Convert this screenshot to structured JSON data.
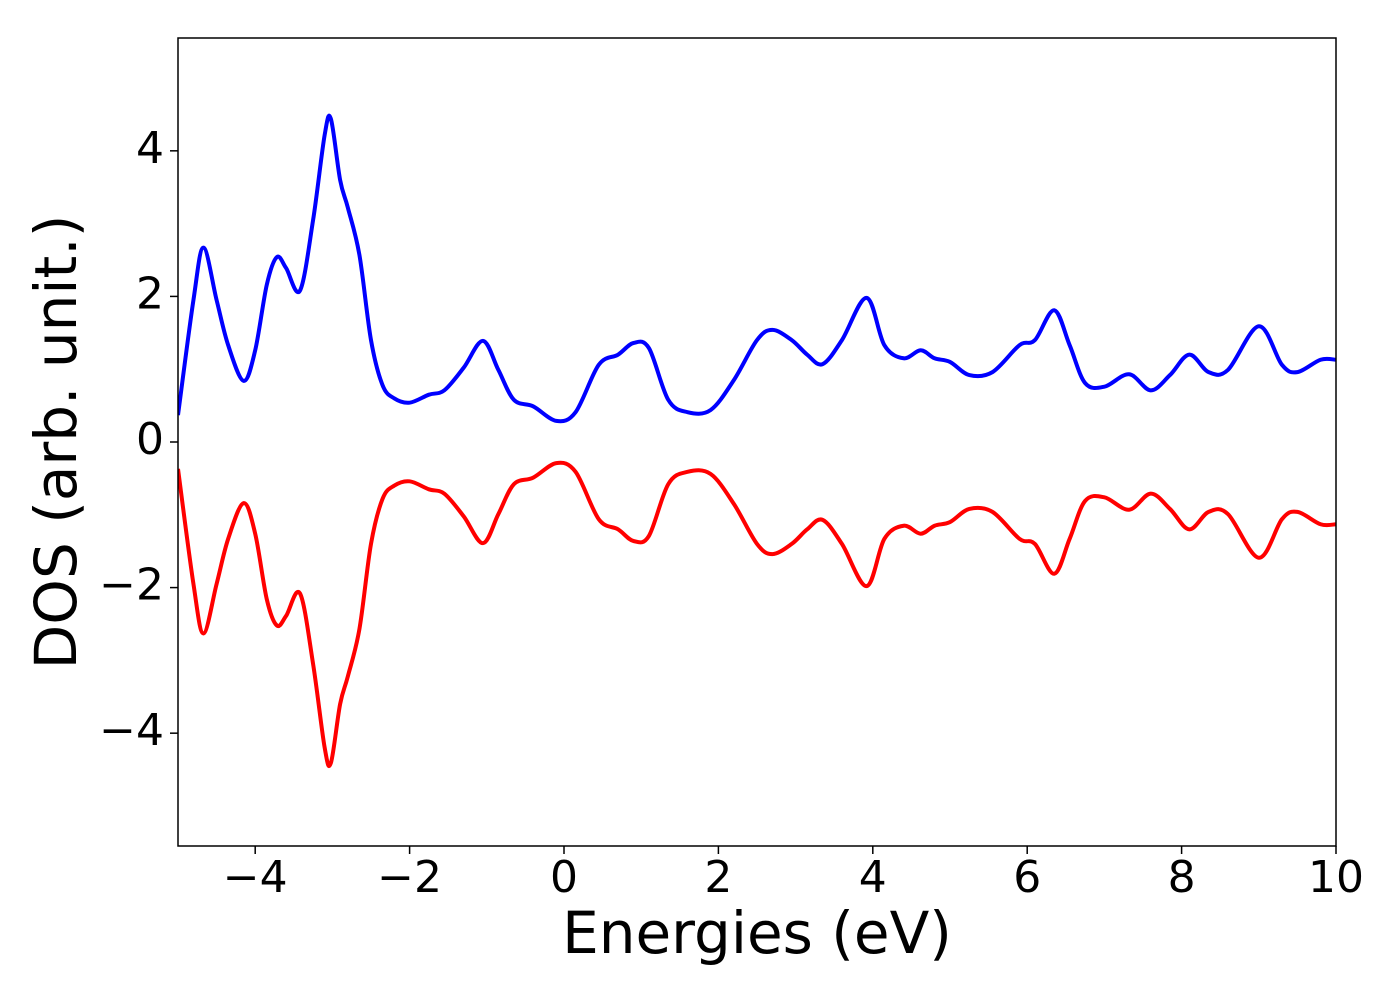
{
  "chart_data": {
    "type": "line",
    "xlabel": "Energies (eV)",
    "ylabel": "DOS (arb. unit.)",
    "x": [
      -5.0,
      -4.8,
      -4.67,
      -4.5,
      -4.35,
      -4.15,
      -4.0,
      -3.85,
      -3.72,
      -3.6,
      -3.42,
      -3.25,
      -3.1,
      -3.02,
      -2.9,
      -2.8,
      -2.65,
      -2.5,
      -2.35,
      -2.2,
      -2.0,
      -1.75,
      -1.55,
      -1.3,
      -1.05,
      -0.85,
      -0.65,
      -0.4,
      -0.1,
      0.15,
      0.45,
      0.7,
      0.9,
      1.1,
      1.35,
      1.6,
      1.9,
      2.2,
      2.5,
      2.7,
      2.95,
      3.15,
      3.35,
      3.6,
      3.92,
      4.15,
      4.4,
      4.62,
      4.8,
      5.0,
      5.25,
      5.55,
      5.9,
      6.1,
      6.35,
      6.55,
      6.75,
      7.0,
      7.32,
      7.6,
      7.85,
      8.1,
      8.35,
      8.6,
      9.0,
      9.3,
      9.5,
      9.8,
      10.0
    ],
    "series": [
      {
        "color": "#0000ff",
        "values": [
          0.37,
          1.95,
          2.67,
          1.95,
          1.33,
          0.84,
          1.26,
          2.16,
          2.54,
          2.39,
          2.08,
          3.05,
          4.22,
          4.44,
          3.6,
          3.22,
          2.57,
          1.4,
          0.78,
          0.6,
          0.54,
          0.65,
          0.71,
          1.02,
          1.39,
          0.99,
          0.58,
          0.49,
          0.29,
          0.41,
          1.06,
          1.2,
          1.36,
          1.29,
          0.58,
          0.41,
          0.44,
          0.85,
          1.4,
          1.54,
          1.4,
          1.2,
          1.07,
          1.4,
          1.98,
          1.33,
          1.15,
          1.26,
          1.15,
          1.1,
          0.92,
          0.96,
          1.33,
          1.4,
          1.81,
          1.33,
          0.81,
          0.76,
          0.93,
          0.71,
          0.92,
          1.2,
          0.96,
          0.99,
          1.59,
          1.06,
          0.96,
          1.13,
          1.13
        ]
      },
      {
        "color": "#ff0000",
        "values": [
          -0.37,
          -1.95,
          -2.63,
          -1.95,
          -1.33,
          -0.84,
          -1.26,
          -2.16,
          -2.52,
          -2.39,
          -2.08,
          -3.05,
          -4.2,
          -4.41,
          -3.6,
          -3.22,
          -2.57,
          -1.4,
          -0.78,
          -0.6,
          -0.54,
          -0.65,
          -0.71,
          -1.02,
          -1.39,
          -0.99,
          -0.58,
          -0.49,
          -0.29,
          -0.41,
          -1.06,
          -1.2,
          -1.36,
          -1.29,
          -0.58,
          -0.41,
          -0.44,
          -0.85,
          -1.4,
          -1.54,
          -1.4,
          -1.2,
          -1.07,
          -1.4,
          -1.98,
          -1.33,
          -1.15,
          -1.26,
          -1.15,
          -1.1,
          -0.92,
          -0.96,
          -1.33,
          -1.4,
          -1.81,
          -1.33,
          -0.81,
          -0.76,
          -0.93,
          -0.71,
          -0.92,
          -1.2,
          -0.96,
          -0.99,
          -1.59,
          -1.06,
          -0.96,
          -1.13,
          -1.13
        ]
      }
    ],
    "xlim": [
      -5,
      10
    ],
    "xticks": [
      {
        "value": -4,
        "label": "−4"
      },
      {
        "value": -2,
        "label": "−2"
      },
      0,
      2,
      4,
      6,
      8,
      10
    ],
    "ylim": [
      -5.55,
      5.55
    ],
    "yticks": [
      {
        "value": -4,
        "label": "−4"
      },
      {
        "value": -2,
        "label": "−2"
      },
      0,
      2,
      4
    ],
    "grid": false
  }
}
